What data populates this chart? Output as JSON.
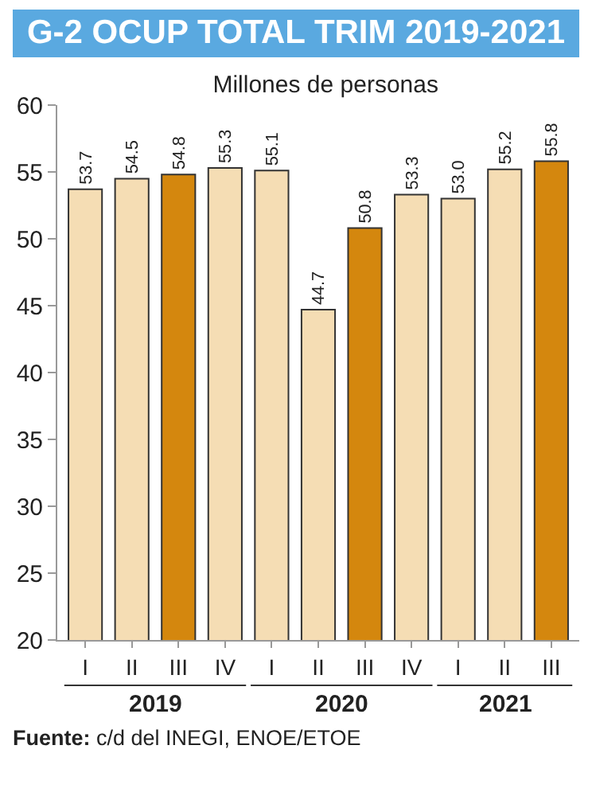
{
  "chart_data": {
    "type": "bar",
    "title": "G-2 OCUP TOTAL TRIM 2019-2021",
    "subtitle": "Millones de personas",
    "categories": [
      "I",
      "II",
      "III",
      "IV",
      "I",
      "II",
      "III",
      "IV",
      "I",
      "II",
      "III"
    ],
    "values": [
      53.7,
      54.5,
      54.8,
      55.3,
      55.1,
      44.7,
      50.8,
      53.3,
      53.0,
      55.2,
      55.8
    ],
    "value_labels": [
      "53.7",
      "54.5",
      "54.8",
      "55.3",
      "55.1",
      "44.7",
      "50.8",
      "53.3",
      "53.0",
      "55.2",
      "55.8"
    ],
    "colors": [
      "#f5ddb4",
      "#f5ddb4",
      "#d4870e",
      "#f5ddb4",
      "#f5ddb4",
      "#f5ddb4",
      "#d4870e",
      "#f5ddb4",
      "#f5ddb4",
      "#f5ddb4",
      "#d4870e"
    ],
    "ylim": [
      20,
      60
    ],
    "yticks": [
      20,
      25,
      30,
      35,
      40,
      45,
      50,
      55,
      60
    ],
    "grid": false,
    "annotations": [
      "2019",
      "2020",
      "2021",
      "Fuente: c/d del INEGI, ENOE/ETOE"
    ]
  }
}
